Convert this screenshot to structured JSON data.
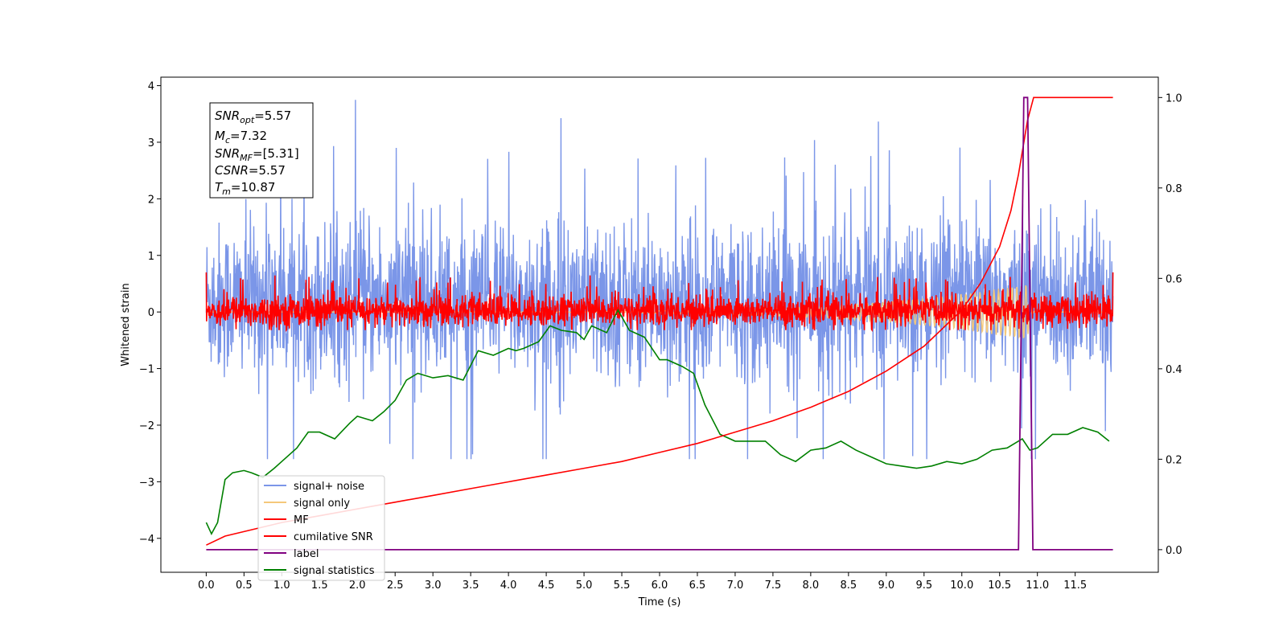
{
  "chart_data": {
    "type": "line",
    "xlabel": "Time (s)",
    "ylabel_left": "Whitened strain",
    "xlim": [
      -0.6,
      12.6
    ],
    "ylim_left": [
      -4.6,
      4.15
    ],
    "ylim_right": [
      -0.05,
      1.045
    ],
    "x_ticks": [
      0.0,
      0.5,
      1.0,
      1.5,
      2.0,
      2.5,
      3.0,
      3.5,
      4.0,
      4.5,
      5.0,
      5.5,
      6.0,
      6.5,
      7.0,
      7.5,
      8.0,
      8.5,
      9.0,
      9.5,
      10.0,
      10.5,
      11.0,
      11.5
    ],
    "x_tick_labels": [
      "0.0",
      "0.5",
      "1.0",
      "1.5",
      "2.0",
      "2.5",
      "3.0",
      "3.5",
      "4.0",
      "4.5",
      "5.0",
      "5.5",
      "6.0",
      "6.5",
      "7.0",
      "7.5",
      "8.0",
      "8.5",
      "9.0",
      "9.5",
      "10.0",
      "10.5",
      "11.0",
      "11.5"
    ],
    "y_ticks_left": [
      -4,
      -3,
      -2,
      -1,
      0,
      1,
      2,
      3,
      4
    ],
    "y_tick_labels_left": [
      "−4",
      "−3",
      "−2",
      "−1",
      "0",
      "1",
      "2",
      "3",
      "4"
    ],
    "y_ticks_right": [
      0.0,
      0.2,
      0.4,
      0.6,
      0.8,
      1.0
    ],
    "y_tick_labels_right": [
      "0.0",
      "0.2",
      "0.4",
      "0.6",
      "0.8",
      "1.0"
    ],
    "legend_position": "lower-left",
    "annotation": {
      "snr_opt": {
        "sym": "SNR",
        "sub": "opt",
        "value": "=5.57"
      },
      "mc": {
        "sym": "M",
        "sub": "c",
        "value": "=7.32"
      },
      "snr_mf": {
        "sym": "SNR",
        "sub": "MF",
        "value": "=[5.31]"
      },
      "csnr": {
        "sym": "CSNR",
        "sub": "",
        "value": "=5.57"
      },
      "tm": {
        "sym": "T",
        "sub": "m",
        "value": "=10.87"
      }
    },
    "series": [
      {
        "name": "signal+ noise",
        "color": "#7b96e8",
        "axis": "left",
        "kind": "noise",
        "x_range": [
          0,
          12
        ],
        "envelope": [
          -2.6,
          3.75
        ],
        "typical": [
          -1.7,
          2.1
        ]
      },
      {
        "name": "signal only",
        "color": "#f5c87a",
        "axis": "left",
        "kind": "chirp",
        "x_range": [
          0,
          12
        ],
        "peak_time": 10.87,
        "peak_amp": 0.5
      },
      {
        "name": "MF",
        "color": "#ff0000",
        "axis": "left",
        "kind": "noise",
        "x_range": [
          0,
          12
        ],
        "typical": [
          -0.3,
          0.55
        ],
        "edge_value": 1.0
      },
      {
        "name": "cumilative SNR",
        "color": "#ff0000",
        "axis": "right",
        "x": [
          0.0,
          0.25,
          0.5,
          1.0,
          1.5,
          2.0,
          2.5,
          3.0,
          3.5,
          4.0,
          4.5,
          5.0,
          5.5,
          6.0,
          6.5,
          7.0,
          7.5,
          8.0,
          8.5,
          9.0,
          9.5,
          10.0,
          10.25,
          10.5,
          10.65,
          10.75,
          10.87,
          10.95,
          12.0
        ],
        "y": [
          0.01,
          0.03,
          0.04,
          0.06,
          0.075,
          0.09,
          0.105,
          0.12,
          0.135,
          0.15,
          0.165,
          0.18,
          0.195,
          0.215,
          0.235,
          0.26,
          0.285,
          0.315,
          0.35,
          0.395,
          0.45,
          0.53,
          0.59,
          0.67,
          0.75,
          0.83,
          0.95,
          1.0,
          1.0
        ]
      },
      {
        "name": "label",
        "color": "#800080",
        "axis": "right",
        "x": [
          0.0,
          10.75,
          10.8,
          10.82,
          10.87,
          10.94,
          12.0
        ],
        "y": [
          0.0,
          0.0,
          0.7,
          1.0,
          1.0,
          0.0,
          0.0
        ]
      },
      {
        "name": "signal statistics",
        "color": "#008000",
        "axis": "right",
        "x": [
          0.0,
          0.07,
          0.15,
          0.25,
          0.35,
          0.5,
          0.6,
          0.75,
          0.9,
          1.0,
          1.2,
          1.35,
          1.5,
          1.7,
          1.9,
          2.0,
          2.2,
          2.35,
          2.5,
          2.65,
          2.8,
          3.0,
          3.2,
          3.4,
          3.6,
          3.8,
          4.0,
          4.1,
          4.2,
          4.4,
          4.55,
          4.7,
          4.9,
          5.0,
          5.1,
          5.3,
          5.45,
          5.6,
          5.8,
          6.0,
          6.1,
          6.3,
          6.45,
          6.6,
          6.8,
          7.0,
          7.2,
          7.4,
          7.6,
          7.8,
          8.0,
          8.2,
          8.4,
          8.6,
          8.8,
          9.0,
          9.2,
          9.4,
          9.6,
          9.8,
          10.0,
          10.2,
          10.4,
          10.6,
          10.8,
          10.9,
          11.0,
          11.2,
          11.4,
          11.6,
          11.8,
          11.95
        ],
        "y": [
          0.06,
          0.035,
          0.06,
          0.155,
          0.17,
          0.175,
          0.17,
          0.16,
          0.18,
          0.195,
          0.225,
          0.26,
          0.26,
          0.245,
          0.28,
          0.295,
          0.285,
          0.305,
          0.33,
          0.375,
          0.39,
          0.38,
          0.385,
          0.375,
          0.44,
          0.43,
          0.445,
          0.44,
          0.445,
          0.46,
          0.495,
          0.485,
          0.48,
          0.465,
          0.495,
          0.48,
          0.53,
          0.485,
          0.47,
          0.42,
          0.42,
          0.405,
          0.39,
          0.32,
          0.255,
          0.24,
          0.24,
          0.24,
          0.21,
          0.195,
          0.22,
          0.225,
          0.24,
          0.22,
          0.205,
          0.19,
          0.185,
          0.18,
          0.185,
          0.195,
          0.19,
          0.2,
          0.22,
          0.225,
          0.245,
          0.22,
          0.225,
          0.255,
          0.255,
          0.27,
          0.26,
          0.24
        ]
      }
    ]
  }
}
